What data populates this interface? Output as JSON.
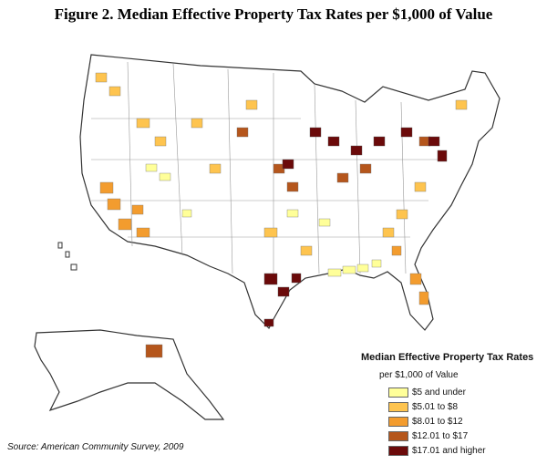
{
  "figure": {
    "title": "Figure 2. Median Effective Property Tax Rates per $1,000 of Value",
    "source": "Source: American Community Survey, 2009"
  },
  "legend": {
    "title": "Median Effective Property Tax Rates",
    "subtitle": "per $1,000 of Value",
    "items": [
      {
        "label": "$5 and under",
        "color": "#ffff99"
      },
      {
        "label": "$5.01 to $8",
        "color": "#fec44f"
      },
      {
        "label": "$8.01 to $12",
        "color": "#f39c2e"
      },
      {
        "label": "$12.01 to $17",
        "color": "#b5561c"
      },
      {
        "label": "$17.01 and higher",
        "color": "#6b0a0a"
      }
    ]
  },
  "map": {
    "background_fill": "#ffffff",
    "boundary_color": "#333333"
  }
}
